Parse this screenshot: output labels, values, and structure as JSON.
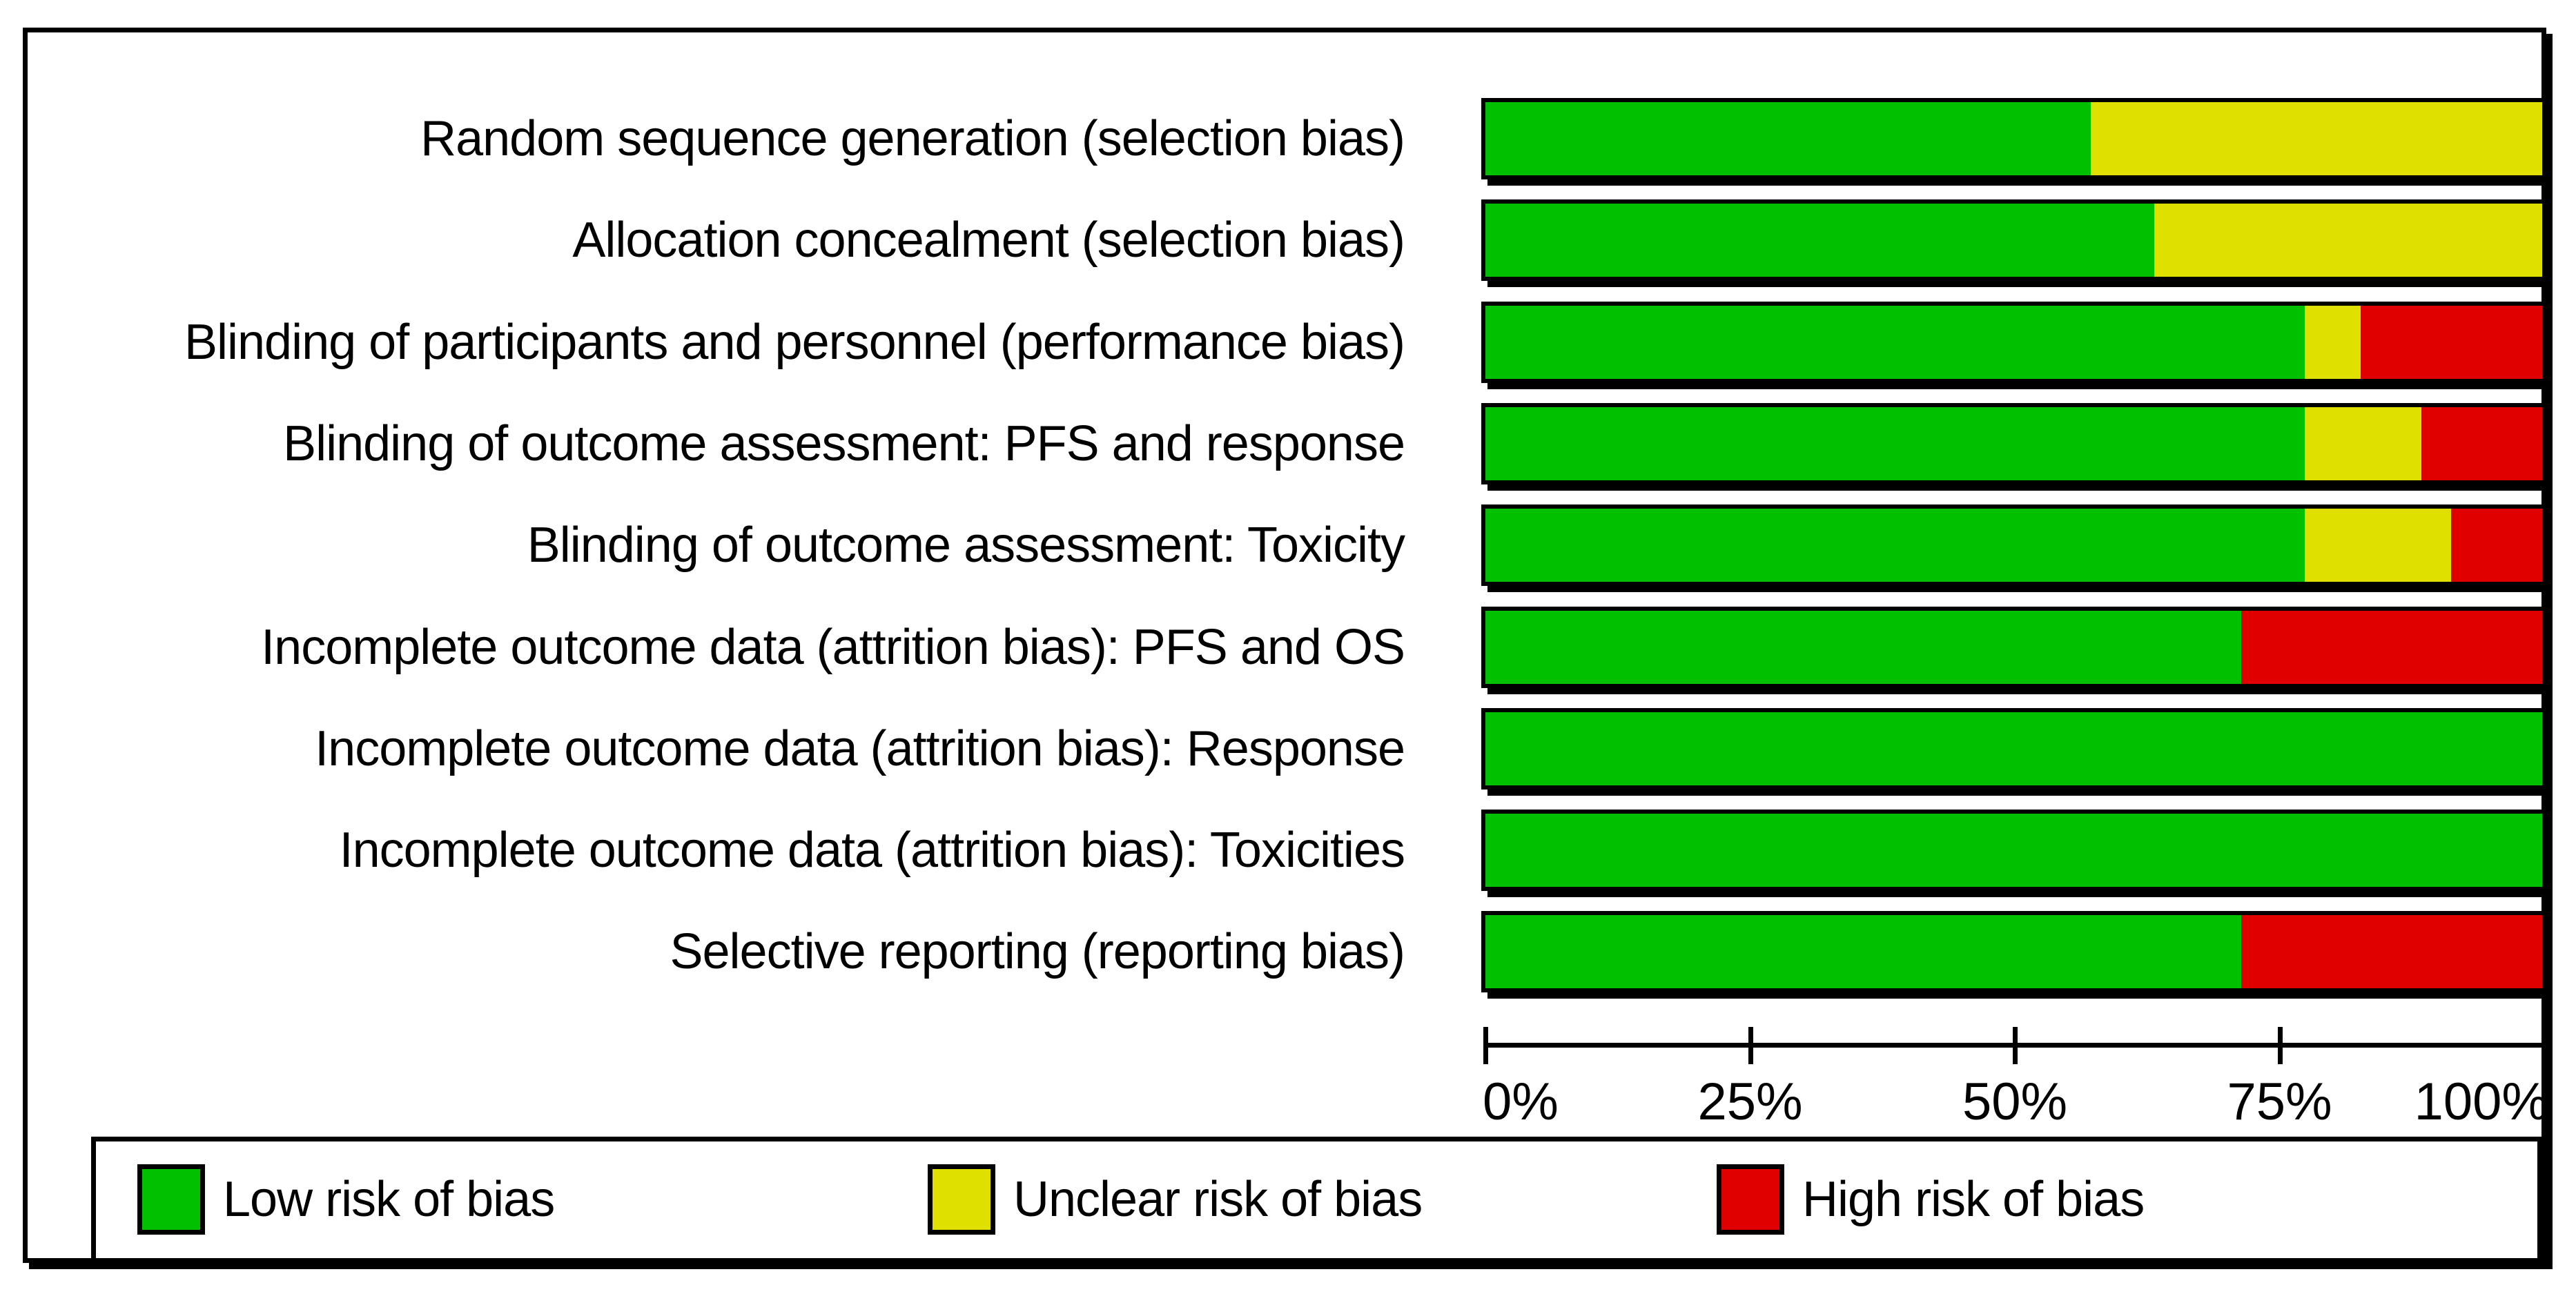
{
  "figure": {
    "kind": "risk-of-bias-graph",
    "background": "#ffffff",
    "frame_color": "#000000"
  },
  "chart_data": {
    "type": "bar",
    "stacked": true,
    "orientation": "horizontal",
    "title": "",
    "xlabel": "",
    "ylabel": "",
    "xlim": [
      0,
      100
    ],
    "grid": false,
    "legend_position": "bottom",
    "categories": [
      "Random sequence generation (selection bias)",
      "Allocation concealment (selection bias)",
      "Blinding of participants and personnel (performance bias)",
      "Blinding of outcome assessment: PFS and response",
      "Blinding of outcome assessment: Toxicity",
      "Incomplete outcome data (attrition bias): PFS and OS",
      "Incomplete outcome data (attrition bias): Response",
      "Incomplete outcome data (attrition bias): Toxicities",
      "Selective reporting (reporting bias)"
    ],
    "series": [
      {
        "name": "Low risk of bias",
        "key": "low-risk",
        "color": "#00C000",
        "values": [
          57.3,
          63.3,
          77.5,
          77.5,
          77.5,
          71.5,
          100,
          100,
          71.5
        ]
      },
      {
        "name": "Unclear risk of bias",
        "key": "unclear-risk",
        "color": "#E0E000",
        "values": [
          42.7,
          36.7,
          5.3,
          11.1,
          13.9,
          0,
          0,
          0,
          0
        ]
      },
      {
        "name": "High risk of bias",
        "key": "high-risk",
        "color": "#E00000",
        "values": [
          0,
          0,
          17.2,
          11.4,
          8.6,
          28.5,
          0,
          0,
          28.5
        ]
      }
    ],
    "x_ticks": [
      {
        "label": "0%",
        "value": 0
      },
      {
        "label": "25%",
        "value": 25
      },
      {
        "label": "50%",
        "value": 50
      },
      {
        "label": "75%",
        "value": 75
      },
      {
        "label": "100%",
        "value": 100
      }
    ]
  }
}
